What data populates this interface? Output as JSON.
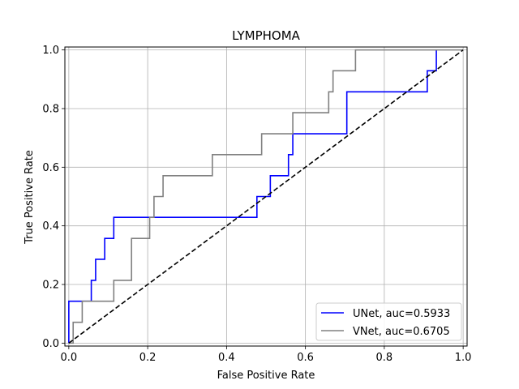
{
  "chart_data": {
    "type": "line",
    "title": "LYMPHOMA",
    "xlabel": "False Positive Rate",
    "ylabel": "True Positive Rate",
    "xlim": [
      -0.01,
      1.01
    ],
    "ylim": [
      -0.01,
      1.01
    ],
    "xticks": [
      0.0,
      0.2,
      0.4,
      0.6,
      0.8,
      1.0
    ],
    "xtick_labels": [
      "0.0",
      "0.2",
      "0.4",
      "0.6",
      "0.8",
      "1.0"
    ],
    "yticks": [
      0.0,
      0.2,
      0.4,
      0.6,
      0.8,
      1.0
    ],
    "ytick_labels": [
      "0.0",
      "0.2",
      "0.4",
      "0.6",
      "0.8",
      "1.0"
    ],
    "grid": true,
    "legend_position": "lower-right",
    "series": [
      {
        "name": "UNet, auc=0.5933",
        "color": "#0000ff",
        "style": "solid",
        "points": [
          [
            0.0,
            0.0
          ],
          [
            0.0,
            0.143
          ],
          [
            0.057,
            0.143
          ],
          [
            0.057,
            0.214
          ],
          [
            0.068,
            0.214
          ],
          [
            0.068,
            0.286
          ],
          [
            0.091,
            0.286
          ],
          [
            0.091,
            0.357
          ],
          [
            0.114,
            0.357
          ],
          [
            0.114,
            0.429
          ],
          [
            0.477,
            0.429
          ],
          [
            0.477,
            0.5
          ],
          [
            0.511,
            0.5
          ],
          [
            0.511,
            0.571
          ],
          [
            0.557,
            0.571
          ],
          [
            0.557,
            0.643
          ],
          [
            0.568,
            0.643
          ],
          [
            0.568,
            0.714
          ],
          [
            0.705,
            0.714
          ],
          [
            0.705,
            0.857
          ],
          [
            0.909,
            0.857
          ],
          [
            0.909,
            0.929
          ],
          [
            0.932,
            0.929
          ],
          [
            0.932,
            1.0
          ]
        ]
      },
      {
        "name": "VNet, auc=0.6705",
        "color": "#808080",
        "style": "solid",
        "points": [
          [
            0.0,
            0.0
          ],
          [
            0.011,
            0.0
          ],
          [
            0.011,
            0.071
          ],
          [
            0.034,
            0.071
          ],
          [
            0.034,
            0.143
          ],
          [
            0.114,
            0.143
          ],
          [
            0.114,
            0.214
          ],
          [
            0.159,
            0.214
          ],
          [
            0.159,
            0.357
          ],
          [
            0.205,
            0.357
          ],
          [
            0.205,
            0.429
          ],
          [
            0.216,
            0.429
          ],
          [
            0.216,
            0.5
          ],
          [
            0.239,
            0.5
          ],
          [
            0.239,
            0.571
          ],
          [
            0.364,
            0.571
          ],
          [
            0.364,
            0.643
          ],
          [
            0.489,
            0.643
          ],
          [
            0.489,
            0.714
          ],
          [
            0.568,
            0.714
          ],
          [
            0.568,
            0.786
          ],
          [
            0.659,
            0.786
          ],
          [
            0.659,
            0.857
          ],
          [
            0.67,
            0.857
          ],
          [
            0.67,
            0.929
          ],
          [
            0.727,
            0.929
          ],
          [
            0.727,
            1.0
          ],
          [
            1.0,
            1.0
          ]
        ]
      },
      {
        "name": "",
        "color": "#000000",
        "style": "dashed",
        "points": [
          [
            0.0,
            0.0
          ],
          [
            1.0,
            1.0
          ]
        ]
      }
    ]
  }
}
